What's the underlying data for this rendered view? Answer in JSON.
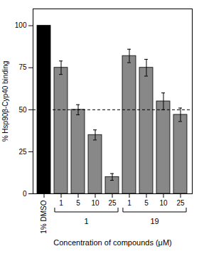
{
  "chart_data": {
    "type": "bar",
    "categories": [
      "1% DMSO",
      "1",
      "5",
      "10",
      "25",
      "1",
      "5",
      "10",
      "25"
    ],
    "values": [
      100,
      75,
      50,
      35,
      10,
      82,
      75,
      55,
      47
    ],
    "errors": [
      0,
      4,
      3,
      3,
      2,
      4,
      5,
      5,
      4
    ],
    "colors": [
      "#000000",
      "#888888",
      "#888888",
      "#888888",
      "#888888",
      "#888888",
      "#888888",
      "#888888",
      "#888888"
    ],
    "xlabel": "Concentration of compounds (μM)",
    "ylabel": "% Hsp90β-Cyp40 binding",
    "ylim": [
      0,
      110
    ],
    "yticks": [
      0,
      25,
      50,
      75,
      100
    ],
    "grid": false,
    "reference_line": {
      "y": 50,
      "line_style": "dashed"
    },
    "groups": [
      {
        "label": "1",
        "indices": [
          1,
          2,
          3,
          4
        ]
      },
      {
        "label": "19",
        "indices": [
          5,
          6,
          7,
          8
        ]
      }
    ]
  }
}
